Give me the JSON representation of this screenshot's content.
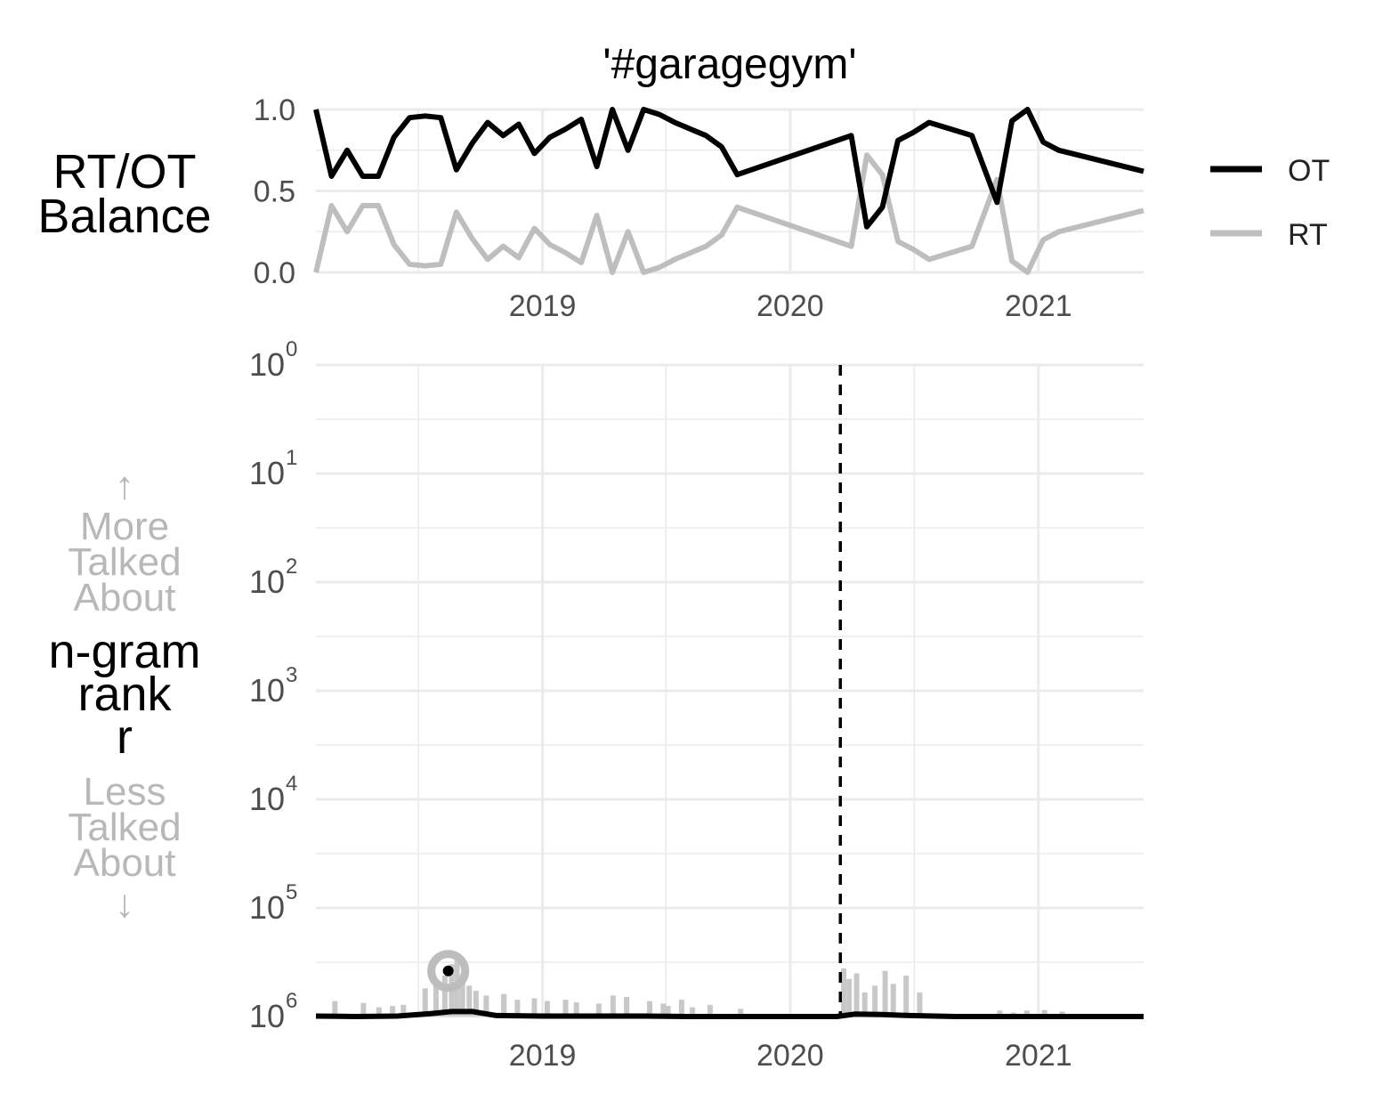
{
  "chart_data": [
    {
      "type": "line",
      "title": "'#garagegym'",
      "ylabel": [
        "RT/OT",
        "Balance"
      ],
      "x_start": "2018-02",
      "x_end": "2021-06",
      "xticks": [
        "2019",
        "2020",
        "2021"
      ],
      "yticks": [
        "0.0",
        "0.5",
        "1.0"
      ],
      "ylim": [
        0,
        1
      ],
      "grid": true,
      "legend": {
        "position": "right",
        "entries": [
          "OT",
          "RT"
        ]
      },
      "series": [
        {
          "name": "OT",
          "color": "#000000",
          "x": [
            "2018-02-01",
            "2018-02-24",
            "2018-03-19",
            "2018-04-11",
            "2018-05-04",
            "2018-05-27",
            "2018-06-19",
            "2018-07-12",
            "2018-08-04",
            "2018-08-27",
            "2018-09-19",
            "2018-10-12",
            "2018-11-04",
            "2018-11-27",
            "2018-12-20",
            "2019-01-12",
            "2019-02-04",
            "2019-02-27",
            "2019-03-22",
            "2019-04-14",
            "2019-05-07",
            "2019-05-30",
            "2019-06-22",
            "2019-07-15",
            "2019-08-07",
            "2019-08-30",
            "2019-09-22",
            "2019-10-15",
            "2020-03-31",
            "2020-04-23",
            "2020-05-16",
            "2020-06-08",
            "2020-07-01",
            "2020-07-24",
            "2020-09-25",
            "2020-11-01",
            "2020-11-23",
            "2020-12-16",
            "2021-01-08",
            "2021-01-31",
            "2021-06-05"
          ],
          "values": [
            1.0,
            0.59,
            0.75,
            0.59,
            0.59,
            0.83,
            0.95,
            0.96,
            0.95,
            0.63,
            0.79,
            0.92,
            0.84,
            0.91,
            0.73,
            0.83,
            0.88,
            0.94,
            0.65,
            1.0,
            0.75,
            1.0,
            0.97,
            0.92,
            0.88,
            0.84,
            0.77,
            0.6,
            0.84,
            0.28,
            0.4,
            0.81,
            0.86,
            0.92,
            0.84,
            0.43,
            0.93,
            1.0,
            0.8,
            0.75,
            0.62
          ]
        },
        {
          "name": "RT",
          "color": "#bebebe",
          "x": [
            "2018-02-01",
            "2018-02-24",
            "2018-03-19",
            "2018-04-11",
            "2018-05-04",
            "2018-05-27",
            "2018-06-19",
            "2018-07-12",
            "2018-08-04",
            "2018-08-27",
            "2018-09-19",
            "2018-10-12",
            "2018-11-04",
            "2018-11-27",
            "2018-12-20",
            "2019-01-12",
            "2019-02-04",
            "2019-02-27",
            "2019-03-22",
            "2019-04-14",
            "2019-05-07",
            "2019-05-30",
            "2019-06-22",
            "2019-07-15",
            "2019-08-07",
            "2019-08-30",
            "2019-09-22",
            "2019-10-15",
            "2020-03-31",
            "2020-04-23",
            "2020-05-16",
            "2020-06-08",
            "2020-07-01",
            "2020-07-24",
            "2020-09-25",
            "2020-11-01",
            "2020-11-23",
            "2020-12-16",
            "2021-01-08",
            "2021-01-31",
            "2021-06-05"
          ],
          "values": [
            0.0,
            0.41,
            0.25,
            0.41,
            0.41,
            0.17,
            0.05,
            0.04,
            0.05,
            0.37,
            0.21,
            0.08,
            0.16,
            0.09,
            0.27,
            0.17,
            0.12,
            0.06,
            0.35,
            0.0,
            0.25,
            0.0,
            0.03,
            0.08,
            0.12,
            0.16,
            0.23,
            0.4,
            0.16,
            0.72,
            0.6,
            0.19,
            0.14,
            0.08,
            0.16,
            0.57,
            0.07,
            0.0,
            0.2,
            0.25,
            0.38
          ]
        }
      ]
    },
    {
      "type": "line",
      "ylabel": [
        "n-gram",
        "rank",
        "r"
      ],
      "annotation_up": [
        "↑",
        "More",
        "Talked",
        "About"
      ],
      "annotation_down": [
        "Less",
        "Talked",
        "About",
        "↓"
      ],
      "scale": "log",
      "y_reversed": true,
      "ylim": [
        1,
        1000000
      ],
      "yticks": [
        {
          "base": "10",
          "exp": "0"
        },
        {
          "base": "10",
          "exp": "1"
        },
        {
          "base": "10",
          "exp": "2"
        },
        {
          "base": "10",
          "exp": "3"
        },
        {
          "base": "10",
          "exp": "4"
        },
        {
          "base": "10",
          "exp": "5"
        },
        {
          "base": "10",
          "exp": "6"
        }
      ],
      "xticks": [
        "2019",
        "2020",
        "2021"
      ],
      "x_start": "2018-02",
      "x_end": "2021-06",
      "grid": true,
      "vline": {
        "x": "2020-03-15",
        "style": "dashed",
        "color": "#000000"
      },
      "highlight_point": {
        "x": "2018-08-15",
        "rank": 380000
      },
      "rt_spikes": {
        "name": "RT",
        "color": "#c8c8c8",
        "x": [
          "2018-03-01",
          "2018-04-12",
          "2018-05-05",
          "2018-05-25",
          "2018-06-10",
          "2018-07-12",
          "2018-07-28",
          "2018-08-10",
          "2018-08-20",
          "2018-08-28",
          "2018-09-05",
          "2018-09-15",
          "2018-09-25",
          "2018-10-10",
          "2018-11-05",
          "2018-11-25",
          "2018-12-20",
          "2019-01-08",
          "2019-02-04",
          "2019-02-20",
          "2019-03-25",
          "2019-04-15",
          "2019-05-05",
          "2019-06-08",
          "2019-06-28",
          "2019-07-05",
          "2019-07-25",
          "2019-08-10",
          "2019-09-05",
          "2019-10-20",
          "2020-03-20",
          "2020-03-28",
          "2020-04-08",
          "2020-04-20",
          "2020-05-05",
          "2020-05-20",
          "2020-06-01",
          "2020-06-20",
          "2020-07-10",
          "2020-11-05",
          "2020-11-25",
          "2020-12-15",
          "2021-01-10",
          "2021-02-05"
        ],
        "values": [
          720000,
          750000,
          820000,
          800000,
          780000,
          550000,
          460000,
          420000,
          330000,
          260000,
          410000,
          520000,
          580000,
          640000,
          620000,
          700000,
          680000,
          720000,
          700000,
          740000,
          760000,
          640000,
          660000,
          720000,
          760000,
          800000,
          700000,
          820000,
          780000,
          850000,
          360000,
          450000,
          400000,
          600000,
          520000,
          380000,
          500000,
          420000,
          600000,
          880000,
          920000,
          880000,
          870000,
          900000
        ]
      },
      "ot_line": {
        "name": "OT",
        "color": "#000000",
        "x": [
          "2018-02-01",
          "2018-04-01",
          "2018-06-01",
          "2018-07-20",
          "2018-08-20",
          "2018-09-20",
          "2018-10-25",
          "2019-01-01",
          "2019-03-01",
          "2019-06-01",
          "2019-08-01",
          "2020-01-01",
          "2020-03-10",
          "2020-04-05",
          "2020-05-15",
          "2020-06-25",
          "2020-09-01",
          "2021-06-05"
        ],
        "values": [
          990000,
          1000000,
          990000,
          940000,
          900000,
          900000,
          980000,
          990000,
          990000,
          990000,
          1000000,
          1000000,
          1000000,
          950000,
          960000,
          980000,
          1000000,
          1000000
        ]
      }
    }
  ]
}
